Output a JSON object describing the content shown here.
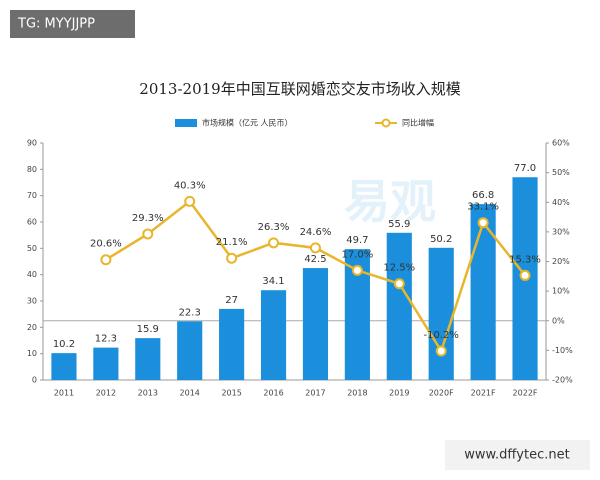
{
  "chart_data": {
    "type": "bar",
    "title": "2013-2019年中国互联网婚恋交友市场收入规模",
    "watermark": "易观",
    "header_tag": "TG: MYYJJPP",
    "footer_tag": "www.dffytec.net",
    "categories": [
      "2011",
      "2012",
      "2013",
      "2014",
      "2015",
      "2016",
      "2017",
      "2018",
      "2019",
      "2020F",
      "2021F",
      "2022F"
    ],
    "series": [
      {
        "name": "市场规模（亿元 人民币）",
        "type": "bar",
        "color": "#1b8fdb",
        "values": [
          10.2,
          12.3,
          15.9,
          22.3,
          27,
          34.1,
          42.5,
          49.7,
          55.9,
          50.2,
          66.8,
          77.0
        ],
        "value_labels": [
          "10.2",
          "12.3",
          "15.9",
          "22.3",
          "27",
          "34.1",
          "42.5",
          "49.7",
          "55.9",
          "50.2",
          "66.8",
          "77.0"
        ]
      },
      {
        "name": "同比增幅",
        "type": "line",
        "axis": "y2",
        "color": "#e8b52c",
        "values": [
          null,
          20.6,
          29.3,
          40.3,
          21.1,
          26.3,
          24.6,
          17.0,
          12.5,
          -10.2,
          33.1,
          15.3
        ],
        "value_labels": [
          null,
          "20.6%",
          "29.3%",
          "40.3%",
          "21.1%",
          "26.3%",
          "24.6%",
          "17.0%",
          "12.5%",
          "-10.2%",
          "33.1%",
          "15.3%"
        ]
      }
    ],
    "ylim": [
      0,
      90
    ],
    "yticks": [
      0,
      10,
      20,
      30,
      40,
      50,
      60,
      70,
      80,
      90
    ],
    "y2lim": [
      -20,
      60
    ],
    "y2ticks": [
      {
        "value": -20,
        "label": "-20%"
      },
      {
        "value": -10,
        "label": "-10%"
      },
      {
        "value": 0,
        "label": "0%"
      },
      {
        "value": 10,
        "label": "10%"
      },
      {
        "value": 20,
        "label": "20%"
      },
      {
        "value": 30,
        "label": "30%"
      },
      {
        "value": 40,
        "label": "40%"
      },
      {
        "value": 50,
        "label": "50%"
      },
      {
        "value": 60,
        "label": "60%"
      }
    ]
  }
}
